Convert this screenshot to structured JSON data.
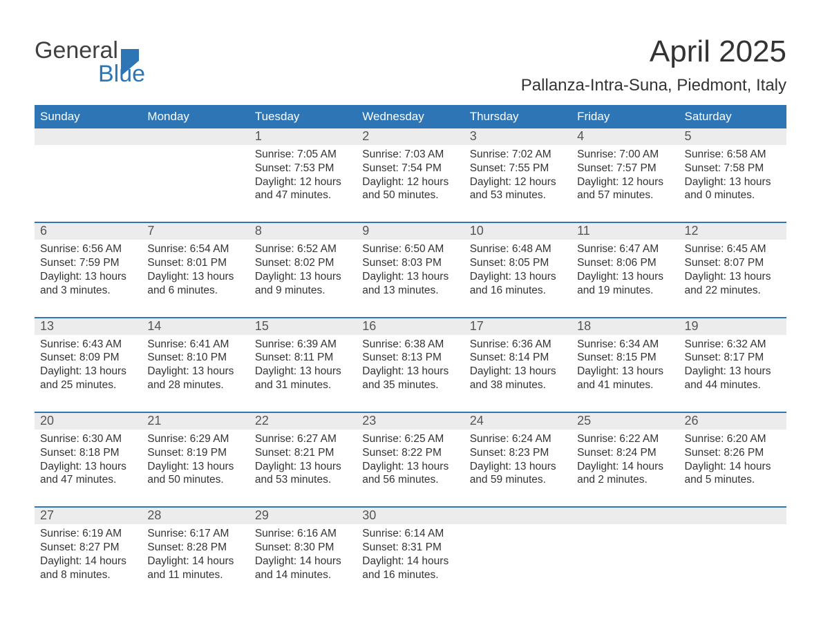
{
  "logo": {
    "part1": "General",
    "part2": "Blue"
  },
  "title": "April 2025",
  "location": "Pallanza-Intra-Suna, Piedmont, Italy",
  "colors": {
    "header_bg": "#2e75b6",
    "header_text": "#ffffff",
    "daynum_bg": "#ececec",
    "week_border": "#2e75b6",
    "body_text": "#333333",
    "logo_gray": "#404040",
    "logo_blue": "#2e75b6",
    "page_bg": "#ffffff"
  },
  "fonts": {
    "title_size_pt": 33,
    "location_size_pt": 18,
    "weekday_size_pt": 13,
    "daynum_size_pt": 13,
    "body_size_pt": 12
  },
  "weekdays": [
    "Sunday",
    "Monday",
    "Tuesday",
    "Wednesday",
    "Thursday",
    "Friday",
    "Saturday"
  ],
  "weeks": [
    [
      {
        "day": "",
        "sunrise": "",
        "sunset": "",
        "daylight": ""
      },
      {
        "day": "",
        "sunrise": "",
        "sunset": "",
        "daylight": ""
      },
      {
        "day": "1",
        "sunrise": "Sunrise: 7:05 AM",
        "sunset": "Sunset: 7:53 PM",
        "daylight": "Daylight: 12 hours and 47 minutes."
      },
      {
        "day": "2",
        "sunrise": "Sunrise: 7:03 AM",
        "sunset": "Sunset: 7:54 PM",
        "daylight": "Daylight: 12 hours and 50 minutes."
      },
      {
        "day": "3",
        "sunrise": "Sunrise: 7:02 AM",
        "sunset": "Sunset: 7:55 PM",
        "daylight": "Daylight: 12 hours and 53 minutes."
      },
      {
        "day": "4",
        "sunrise": "Sunrise: 7:00 AM",
        "sunset": "Sunset: 7:57 PM",
        "daylight": "Daylight: 12 hours and 57 minutes."
      },
      {
        "day": "5",
        "sunrise": "Sunrise: 6:58 AM",
        "sunset": "Sunset: 7:58 PM",
        "daylight": "Daylight: 13 hours and 0 minutes."
      }
    ],
    [
      {
        "day": "6",
        "sunrise": "Sunrise: 6:56 AM",
        "sunset": "Sunset: 7:59 PM",
        "daylight": "Daylight: 13 hours and 3 minutes."
      },
      {
        "day": "7",
        "sunrise": "Sunrise: 6:54 AM",
        "sunset": "Sunset: 8:01 PM",
        "daylight": "Daylight: 13 hours and 6 minutes."
      },
      {
        "day": "8",
        "sunrise": "Sunrise: 6:52 AM",
        "sunset": "Sunset: 8:02 PM",
        "daylight": "Daylight: 13 hours and 9 minutes."
      },
      {
        "day": "9",
        "sunrise": "Sunrise: 6:50 AM",
        "sunset": "Sunset: 8:03 PM",
        "daylight": "Daylight: 13 hours and 13 minutes."
      },
      {
        "day": "10",
        "sunrise": "Sunrise: 6:48 AM",
        "sunset": "Sunset: 8:05 PM",
        "daylight": "Daylight: 13 hours and 16 minutes."
      },
      {
        "day": "11",
        "sunrise": "Sunrise: 6:47 AM",
        "sunset": "Sunset: 8:06 PM",
        "daylight": "Daylight: 13 hours and 19 minutes."
      },
      {
        "day": "12",
        "sunrise": "Sunrise: 6:45 AM",
        "sunset": "Sunset: 8:07 PM",
        "daylight": "Daylight: 13 hours and 22 minutes."
      }
    ],
    [
      {
        "day": "13",
        "sunrise": "Sunrise: 6:43 AM",
        "sunset": "Sunset: 8:09 PM",
        "daylight": "Daylight: 13 hours and 25 minutes."
      },
      {
        "day": "14",
        "sunrise": "Sunrise: 6:41 AM",
        "sunset": "Sunset: 8:10 PM",
        "daylight": "Daylight: 13 hours and 28 minutes."
      },
      {
        "day": "15",
        "sunrise": "Sunrise: 6:39 AM",
        "sunset": "Sunset: 8:11 PM",
        "daylight": "Daylight: 13 hours and 31 minutes."
      },
      {
        "day": "16",
        "sunrise": "Sunrise: 6:38 AM",
        "sunset": "Sunset: 8:13 PM",
        "daylight": "Daylight: 13 hours and 35 minutes."
      },
      {
        "day": "17",
        "sunrise": "Sunrise: 6:36 AM",
        "sunset": "Sunset: 8:14 PM",
        "daylight": "Daylight: 13 hours and 38 minutes."
      },
      {
        "day": "18",
        "sunrise": "Sunrise: 6:34 AM",
        "sunset": "Sunset: 8:15 PM",
        "daylight": "Daylight: 13 hours and 41 minutes."
      },
      {
        "day": "19",
        "sunrise": "Sunrise: 6:32 AM",
        "sunset": "Sunset: 8:17 PM",
        "daylight": "Daylight: 13 hours and 44 minutes."
      }
    ],
    [
      {
        "day": "20",
        "sunrise": "Sunrise: 6:30 AM",
        "sunset": "Sunset: 8:18 PM",
        "daylight": "Daylight: 13 hours and 47 minutes."
      },
      {
        "day": "21",
        "sunrise": "Sunrise: 6:29 AM",
        "sunset": "Sunset: 8:19 PM",
        "daylight": "Daylight: 13 hours and 50 minutes."
      },
      {
        "day": "22",
        "sunrise": "Sunrise: 6:27 AM",
        "sunset": "Sunset: 8:21 PM",
        "daylight": "Daylight: 13 hours and 53 minutes."
      },
      {
        "day": "23",
        "sunrise": "Sunrise: 6:25 AM",
        "sunset": "Sunset: 8:22 PM",
        "daylight": "Daylight: 13 hours and 56 minutes."
      },
      {
        "day": "24",
        "sunrise": "Sunrise: 6:24 AM",
        "sunset": "Sunset: 8:23 PM",
        "daylight": "Daylight: 13 hours and 59 minutes."
      },
      {
        "day": "25",
        "sunrise": "Sunrise: 6:22 AM",
        "sunset": "Sunset: 8:24 PM",
        "daylight": "Daylight: 14 hours and 2 minutes."
      },
      {
        "day": "26",
        "sunrise": "Sunrise: 6:20 AM",
        "sunset": "Sunset: 8:26 PM",
        "daylight": "Daylight: 14 hours and 5 minutes."
      }
    ],
    [
      {
        "day": "27",
        "sunrise": "Sunrise: 6:19 AM",
        "sunset": "Sunset: 8:27 PM",
        "daylight": "Daylight: 14 hours and 8 minutes."
      },
      {
        "day": "28",
        "sunrise": "Sunrise: 6:17 AM",
        "sunset": "Sunset: 8:28 PM",
        "daylight": "Daylight: 14 hours and 11 minutes."
      },
      {
        "day": "29",
        "sunrise": "Sunrise: 6:16 AM",
        "sunset": "Sunset: 8:30 PM",
        "daylight": "Daylight: 14 hours and 14 minutes."
      },
      {
        "day": "30",
        "sunrise": "Sunrise: 6:14 AM",
        "sunset": "Sunset: 8:31 PM",
        "daylight": "Daylight: 14 hours and 16 minutes."
      },
      {
        "day": "",
        "sunrise": "",
        "sunset": "",
        "daylight": ""
      },
      {
        "day": "",
        "sunrise": "",
        "sunset": "",
        "daylight": ""
      },
      {
        "day": "",
        "sunrise": "",
        "sunset": "",
        "daylight": ""
      }
    ]
  ]
}
